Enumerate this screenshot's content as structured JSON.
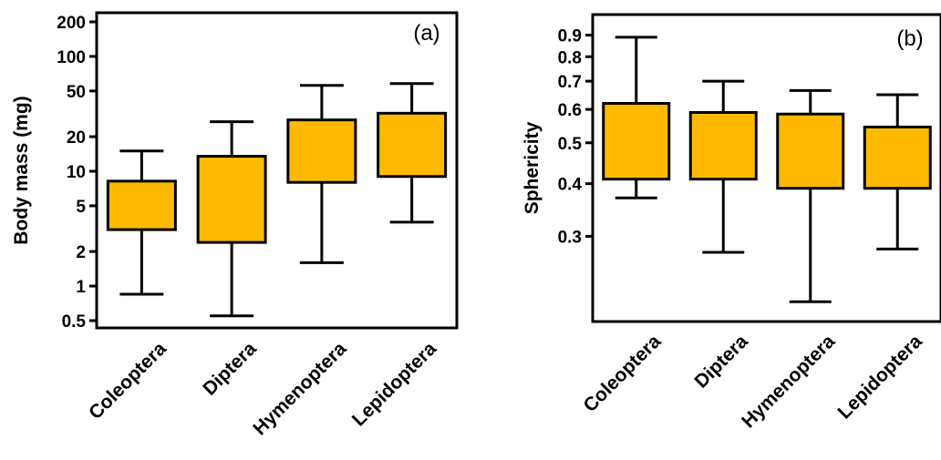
{
  "colors": {
    "box_fill": "#FFBA00",
    "line": "#000000",
    "background": "#FFFFFF"
  },
  "chart_data": [
    {
      "type": "box",
      "panel_label": "(a)",
      "ylabel": "Body mass (mg)",
      "yscale": "log",
      "ylim": [
        0.5,
        200
      ],
      "yticks": [
        0.5,
        1,
        2,
        5,
        10,
        20,
        50,
        100,
        200
      ],
      "ytick_labels": [
        "0.5",
        "1",
        "2",
        "5",
        "10",
        "20",
        "50",
        "100",
        "200"
      ],
      "categories": [
        "Coleoptera",
        "Diptera",
        "Hymenoptera",
        "Lepidoptera"
      ],
      "boxes": [
        {
          "whisker_low": 0.85,
          "q1": 3.1,
          "q3": 8.2,
          "whisker_high": 15
        },
        {
          "whisker_low": 0.55,
          "q1": 2.4,
          "q3": 13.5,
          "whisker_high": 27
        },
        {
          "whisker_low": 1.6,
          "q1": 8.0,
          "q3": 28,
          "whisker_high": 56
        },
        {
          "whisker_low": 3.6,
          "q1": 9.0,
          "q3": 32,
          "whisker_high": 58
        }
      ],
      "grid": false,
      "legend": "none"
    },
    {
      "type": "box",
      "panel_label": "(b)",
      "ylabel": "Sphericity",
      "yscale": "log",
      "ylim": [
        0.2,
        0.93
      ],
      "yticks": [
        0.3,
        0.4,
        0.5,
        0.6,
        0.7,
        0.8,
        0.9
      ],
      "ytick_labels": [
        "0.3",
        "0.4",
        "0.5",
        "0.6",
        "0.7",
        "0.8",
        "0.9"
      ],
      "categories": [
        "Coleoptera",
        "Diptera",
        "Hymenoptera",
        "Lepidoptera"
      ],
      "boxes": [
        {
          "whisker_low": 0.37,
          "q1": 0.41,
          "q3": 0.62,
          "whisker_high": 0.89
        },
        {
          "whisker_low": 0.275,
          "q1": 0.41,
          "q3": 0.59,
          "whisker_high": 0.7
        },
        {
          "whisker_low": 0.21,
          "q1": 0.39,
          "q3": 0.585,
          "whisker_high": 0.665
        },
        {
          "whisker_low": 0.28,
          "q1": 0.39,
          "q3": 0.545,
          "whisker_high": 0.65
        }
      ],
      "grid": false,
      "legend": "none"
    }
  ]
}
